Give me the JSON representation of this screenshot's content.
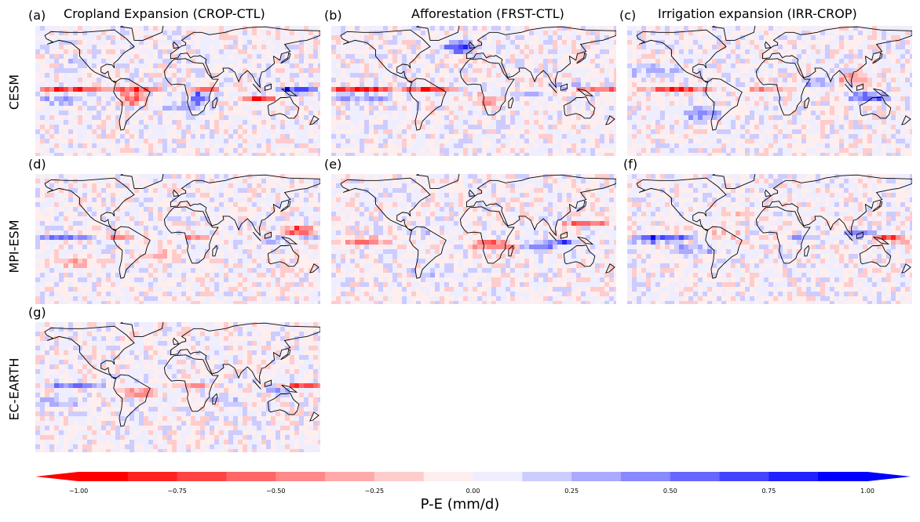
{
  "columns": [
    {
      "title": "Cropland Expansion (CROP-CTL)"
    },
    {
      "title": "Afforestation (FRST-CTL)"
    },
    {
      "title": "Irrigation expansion (IRR-CROP)"
    }
  ],
  "rows": [
    {
      "label": "CESM"
    },
    {
      "label": "MPI-ESM"
    },
    {
      "label": "EC-EARTH"
    }
  ],
  "panels": [
    {
      "letter": "(a)",
      "model": "CESM",
      "experiment": "Cropland Expansion (CROP-CTL)"
    },
    {
      "letter": "(b)",
      "model": "CESM",
      "experiment": "Afforestation (FRST-CTL)"
    },
    {
      "letter": "(c)",
      "model": "CESM",
      "experiment": "Irrigation expansion (IRR-CROP)"
    },
    {
      "letter": "(d)",
      "model": "MPI-ESM",
      "experiment": "Cropland Expansion (CROP-CTL)"
    },
    {
      "letter": "(e)",
      "model": "MPI-ESM",
      "experiment": "Afforestation (FRST-CTL)"
    },
    {
      "letter": "(f)",
      "model": "MPI-ESM",
      "experiment": "Irrigation expansion (IRR-CROP)"
    },
    {
      "letter": "(g)",
      "model": "EC-EARTH",
      "experiment": "Cropland Expansion (CROP-CTL)"
    }
  ],
  "colorbar": {
    "label": "P-E (mm/d)",
    "min": -1.0,
    "max": 1.0,
    "ticks": [
      "−1.00",
      "−0.75",
      "−0.50",
      "−0.25",
      "0.00",
      "0.25",
      "0.50",
      "0.75",
      "1.00"
    ],
    "colors": [
      "#ff0000",
      "#ff2222",
      "#ff4444",
      "#ff6666",
      "#ff8888",
      "#ffaaaa",
      "#ffcccc",
      "#ffeeee",
      "#eeeeff",
      "#ccccff",
      "#aaaaff",
      "#8888ff",
      "#6666ff",
      "#4444ff",
      "#2222ff",
      "#0000ff"
    ],
    "negative_color": "#ff0000",
    "positive_color": "#0000ff"
  }
}
